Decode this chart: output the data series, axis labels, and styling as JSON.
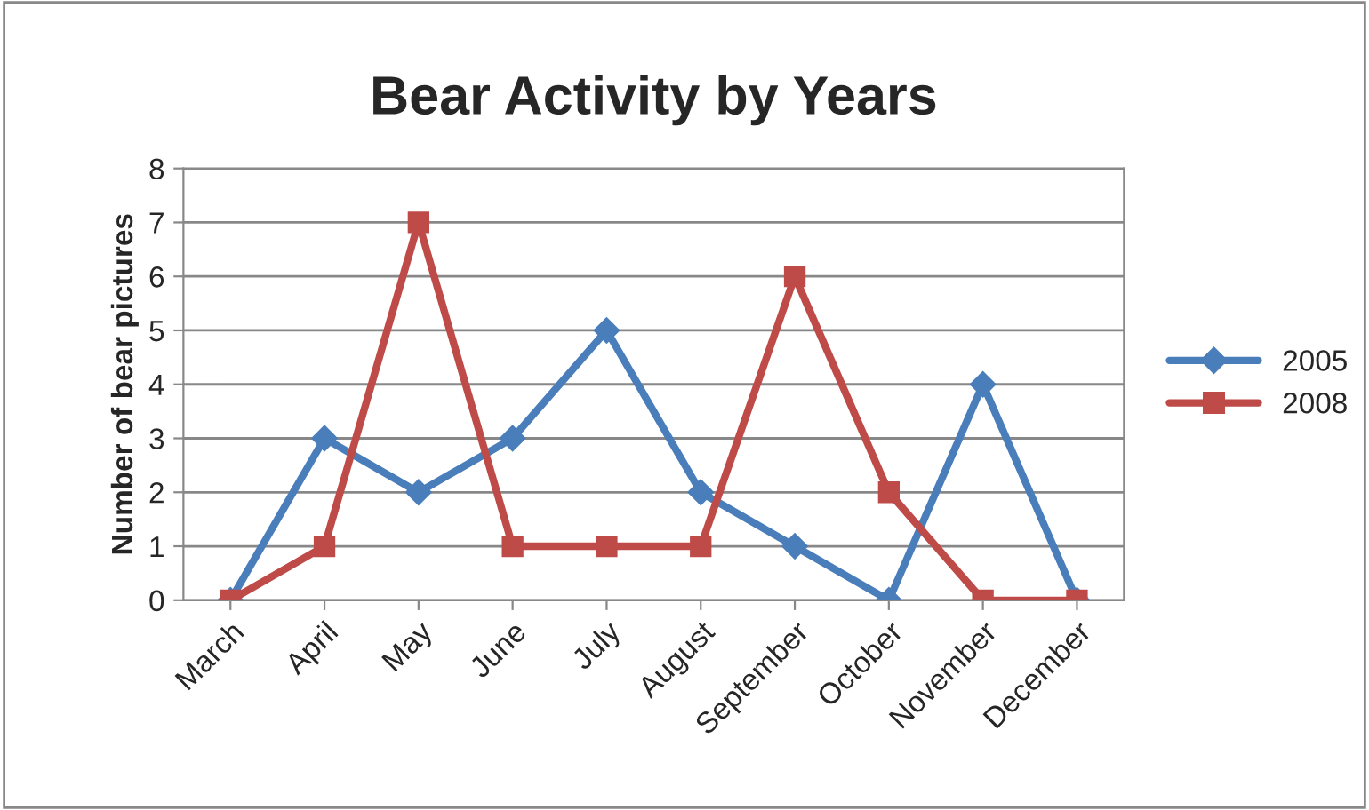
{
  "chart_data": {
    "type": "line",
    "title": "Bear Activity by Years",
    "ylabel": "Number of bear pictures",
    "categories": [
      "March",
      "April",
      "May",
      "June",
      "July",
      "August",
      "September",
      "October",
      "November",
      "December"
    ],
    "series": [
      {
        "name": "2005",
        "color": "#4a7ebb",
        "marker": "diamond",
        "values": [
          0,
          3,
          2,
          3,
          5,
          2,
          1,
          0,
          4,
          0
        ]
      },
      {
        "name": "2008",
        "color": "#be4b48",
        "marker": "square",
        "values": [
          0,
          1,
          7,
          1,
          1,
          1,
          6,
          2,
          0,
          0
        ]
      }
    ],
    "ylim": [
      0,
      8
    ],
    "yticks": [
      0,
      1,
      2,
      3,
      4,
      5,
      6,
      7,
      8
    ],
    "grid": "y",
    "legend": "right",
    "line_style": "solid"
  }
}
